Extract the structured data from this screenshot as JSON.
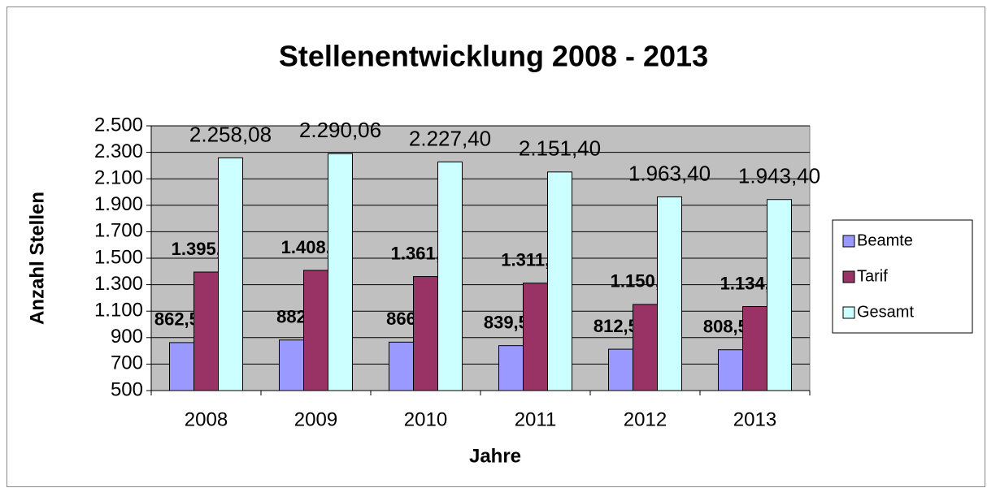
{
  "chart_data": {
    "type": "bar",
    "title": "Stellenentwicklung 2008 - 2013",
    "x_label": "Jahre",
    "y_label": "Anzahl Stellen",
    "categories": [
      "2008",
      "2009",
      "2010",
      "2011",
      "2012",
      "2013"
    ],
    "series": [
      {
        "name": "Beamte",
        "color": "#9999ff",
        "values": [
          862.5,
          882,
          866,
          839.5,
          812.5,
          808.5
        ],
        "value_labels": [
          "862,50",
          "882",
          "866",
          "839,50",
          "812,50",
          "808,50"
        ]
      },
      {
        "name": "Tarif",
        "color": "#993366",
        "values": [
          1395.58,
          1408.06,
          1361.4,
          1311.9,
          1150.9,
          1134.9
        ],
        "value_labels": [
          "1.395,58",
          "1.408,06",
          "1.361,40",
          "1.311,90",
          "1.150,90",
          "1.134,90"
        ]
      },
      {
        "name": "Gesamt",
        "color": "#ccffff",
        "values": [
          2258.08,
          2290.06,
          2227.4,
          2151.4,
          1963.4,
          1943.4
        ],
        "value_labels": [
          "2.258,08",
          "2.290,06",
          "2.227,40",
          "2.151,40",
          "1.963,40",
          "1.943,40"
        ]
      }
    ],
    "ylim": [
      500,
      2500
    ],
    "yticks": [
      500,
      700,
      900,
      {
        "value": 1100,
        "label": "1.100"
      },
      {
        "value": 1300,
        "label": "1.300"
      },
      {
        "value": 1500,
        "label": "1.500"
      },
      {
        "value": 1700,
        "label": "1.700"
      },
      {
        "value": 1900,
        "label": "1.900"
      },
      {
        "value": 2100,
        "label": "2.100"
      },
      {
        "value": 2300,
        "label": "2.300"
      },
      {
        "value": 2500,
        "label": "2.500"
      }
    ],
    "grid": true,
    "legend": "right"
  }
}
